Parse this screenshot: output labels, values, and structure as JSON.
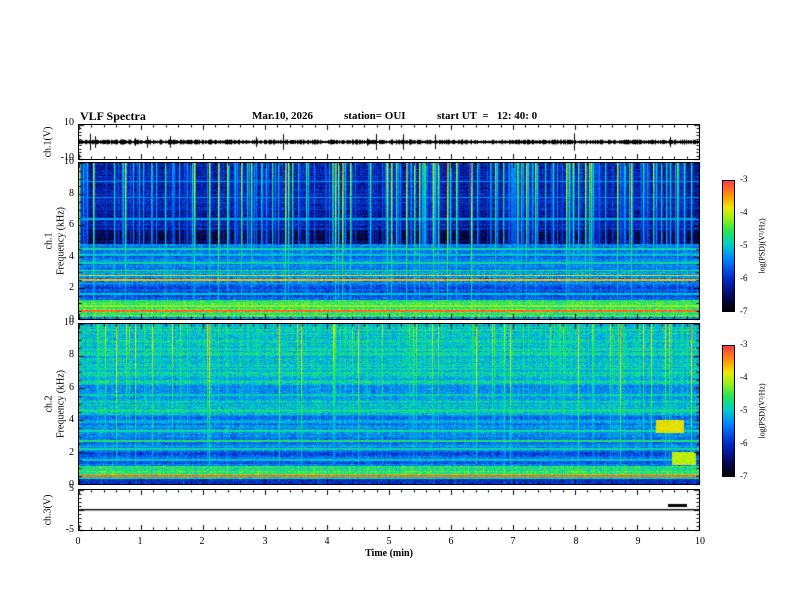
{
  "header": {
    "title": "VLF Spectra",
    "date": "Mar.10, 2026",
    "station": "station= OUI",
    "start_ut": "start UT  =   12: 40: 0"
  },
  "chart_data": {
    "type": "heatmap",
    "title": "VLF Spectra",
    "date": "Mar.10, 2026",
    "station": "OUI",
    "start_ut": "12:40:0",
    "xlabel": "Time (min)",
    "x_range": [
      0,
      10
    ],
    "x_ticks": [
      0,
      1,
      2,
      3,
      4,
      5,
      6,
      7,
      8,
      9,
      10
    ],
    "colorbar": {
      "label": "log(PSD)(V²/Hz)",
      "ticks": [
        -3,
        -4,
        -5,
        -6,
        -7
      ],
      "range": [
        -7,
        -3
      ]
    },
    "panels": [
      {
        "name": "ch1_waveform",
        "ylabel": "ch.1(V)",
        "y_range": [
          -10,
          10
        ],
        "y_ticks": [
          10,
          -10
        ],
        "signal": "dense noise band near 0 V with sparse spikes up to about ±6 V"
      },
      {
        "name": "ch1_spectrogram",
        "ylabel_line1": "ch.1",
        "ylabel_line2": "Frequency (kHz)",
        "y_range": [
          0,
          10
        ],
        "y_ticks": [
          10,
          8,
          6,
          4,
          2,
          0
        ],
        "freq_bands": [
          {
            "f0": 0.0,
            "f1": 0.15,
            "level": 0.45
          },
          {
            "f0": 0.15,
            "f1": 1.2,
            "level": 0.62
          },
          {
            "f0": 1.2,
            "f1": 2.2,
            "level": 0.33
          },
          {
            "f0": 2.2,
            "f1": 3.3,
            "level": 0.42
          },
          {
            "f0": 3.3,
            "f1": 4.8,
            "level": 0.38
          },
          {
            "f0": 4.8,
            "f1": 5.7,
            "level": 0.08
          },
          {
            "f0": 5.7,
            "f1": 10.0,
            "level": 0.22
          }
        ],
        "tone_lines": [
          {
            "f": 0.5,
            "level": 0.95
          },
          {
            "f": 0.85,
            "level": 0.7
          },
          {
            "f": 1.6,
            "level": 0.5
          },
          {
            "f": 2.5,
            "level": 0.85
          },
          {
            "f": 2.8,
            "level": 0.8
          },
          {
            "f": 3.1,
            "level": 0.6
          },
          {
            "f": 3.6,
            "level": 0.55
          },
          {
            "f": 4.1,
            "level": 0.5
          },
          {
            "f": 4.5,
            "level": 0.55
          },
          {
            "f": 6.4,
            "level": 0.45
          },
          {
            "f": 7.8,
            "level": 0.4
          },
          {
            "f": 8.8,
            "level": 0.42
          }
        ],
        "streaks": {
          "count": 260,
          "min_freq": 1.0,
          "seed": 7
        },
        "blobs": []
      },
      {
        "name": "ch2_spectrogram",
        "ylabel_line1": "ch.2",
        "ylabel_line2": "Frequency (kHz)",
        "y_range": [
          0,
          10
        ],
        "y_ticks": [
          10,
          8,
          6,
          4,
          2,
          0
        ],
        "freq_bands": [
          {
            "f0": 0.0,
            "f1": 0.3,
            "level": 0.3
          },
          {
            "f0": 0.3,
            "f1": 1.1,
            "level": 0.6
          },
          {
            "f0": 1.1,
            "f1": 2.0,
            "level": 0.35
          },
          {
            "f0": 2.0,
            "f1": 4.3,
            "level": 0.4
          },
          {
            "f0": 4.3,
            "f1": 5.3,
            "level": 0.5
          },
          {
            "f0": 5.3,
            "f1": 6.2,
            "level": 0.45
          },
          {
            "f0": 6.2,
            "f1": 10.0,
            "level": 0.5
          }
        ],
        "tone_lines": [
          {
            "f": 0.5,
            "level": 0.95
          },
          {
            "f": 1.5,
            "level": 0.5
          },
          {
            "f": 2.2,
            "level": 0.55
          },
          {
            "f": 2.7,
            "level": 0.6
          },
          {
            "f": 3.3,
            "level": 0.55
          },
          {
            "f": 3.9,
            "level": 0.5
          },
          {
            "f": 4.6,
            "level": 0.6
          },
          {
            "f": 5.6,
            "level": 0.55
          },
          {
            "f": 7.2,
            "level": 0.5
          },
          {
            "f": 8.4,
            "level": 0.5
          }
        ],
        "streaks": {
          "count": 300,
          "min_freq": 1.2,
          "seed": 13
        },
        "blobs": [
          {
            "t0": 9.3,
            "t1": 9.75,
            "f0": 3.2,
            "f1": 4.0,
            "level": 0.8
          },
          {
            "t0": 9.55,
            "t1": 9.95,
            "f0": 1.2,
            "f1": 2.0,
            "level": 0.75
          }
        ]
      },
      {
        "name": "ch3_line",
        "ylabel": "ch.3(V)",
        "y_range": [
          -5,
          5
        ],
        "y_ticks": [
          5,
          -5
        ],
        "line_value": 0,
        "dash": {
          "t0": 9.5,
          "t1": 9.8,
          "value": 0.9
        }
      }
    ]
  }
}
